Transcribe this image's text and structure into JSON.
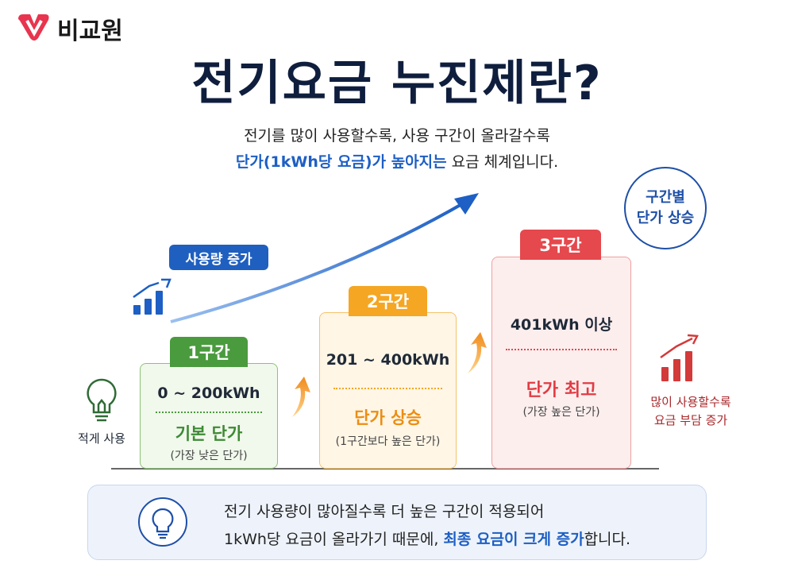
{
  "logo": "비교원",
  "title": "전기요금 누진제란?",
  "subtitle": {
    "line1": "전기를 많이 사용할수록, 사용 구간이 올라갈수록",
    "highlight": "단가(1kWh당 요금)가 높아지는",
    "rest": " 요금 체계입니다."
  },
  "badge": [
    "구간별",
    "단가 상승"
  ],
  "usage_pill": "사용량 증가",
  "left_label": "적게 사용",
  "tiers": [
    {
      "tab": "1구간",
      "range": "0 ~ 200kWh",
      "rate": "기본 단가",
      "note": "(가장 낮은 단가)"
    },
    {
      "tab": "2구간",
      "range": "201 ~ 400kWh",
      "rate": "단가 상승",
      "note": "(1구간보다 높은 단가)"
    },
    {
      "tab": "3구간",
      "range": "401kWh 이상",
      "rate": "단가 최고",
      "note": "(가장 높은 단가)"
    }
  ],
  "right_label": [
    "많이 사용할수록",
    "요금 부담 증가"
  ],
  "footer": {
    "line1": "전기 사용량이 많아질수록 더 높은 구간이 적용되어",
    "line2_start": "1kWh당 요금이 올라가기 때문에, ",
    "line2_highlight": "최종 요금이 크게 증가",
    "line2_end": "합니다."
  }
}
